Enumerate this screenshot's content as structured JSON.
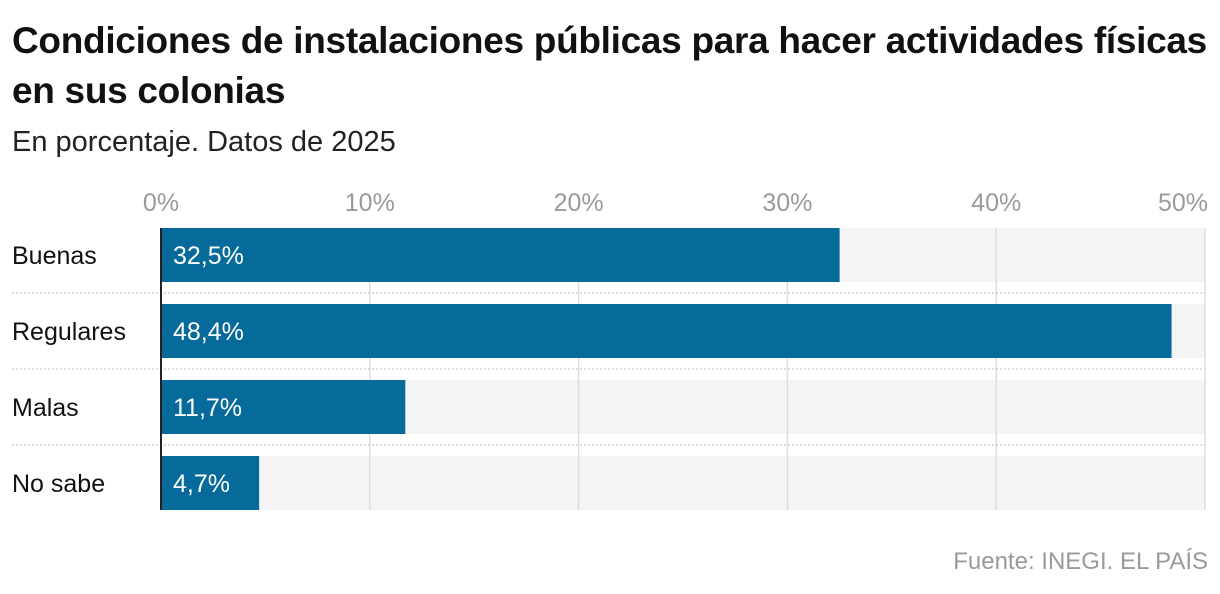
{
  "title": "Condiciones de instalaciones públicas para hacer actividades físicas en sus colonias",
  "subtitle": "En porcentaje. Datos de 2025",
  "source": "Fuente: INEGI. EL PAÍS",
  "colors": {
    "bar": "#066a9b",
    "track": "#f4f4f4",
    "grid": "#dddddd"
  },
  "chart_data": {
    "type": "bar",
    "orientation": "horizontal",
    "categories": [
      "Buenas",
      "Regulares",
      "Malas",
      "No sabe"
    ],
    "values": [
      32.5,
      48.4,
      11.7,
      4.7
    ],
    "data_labels": [
      "32,5%",
      "48,4%",
      "11,7%",
      "4,7%"
    ],
    "xlim": [
      0,
      50
    ],
    "ticks": [
      0,
      10,
      20,
      30,
      40,
      50
    ],
    "tick_labels": [
      "0%",
      "10%",
      "20%",
      "30%",
      "40%",
      "50%"
    ],
    "grid": true,
    "axis_position": "top"
  }
}
